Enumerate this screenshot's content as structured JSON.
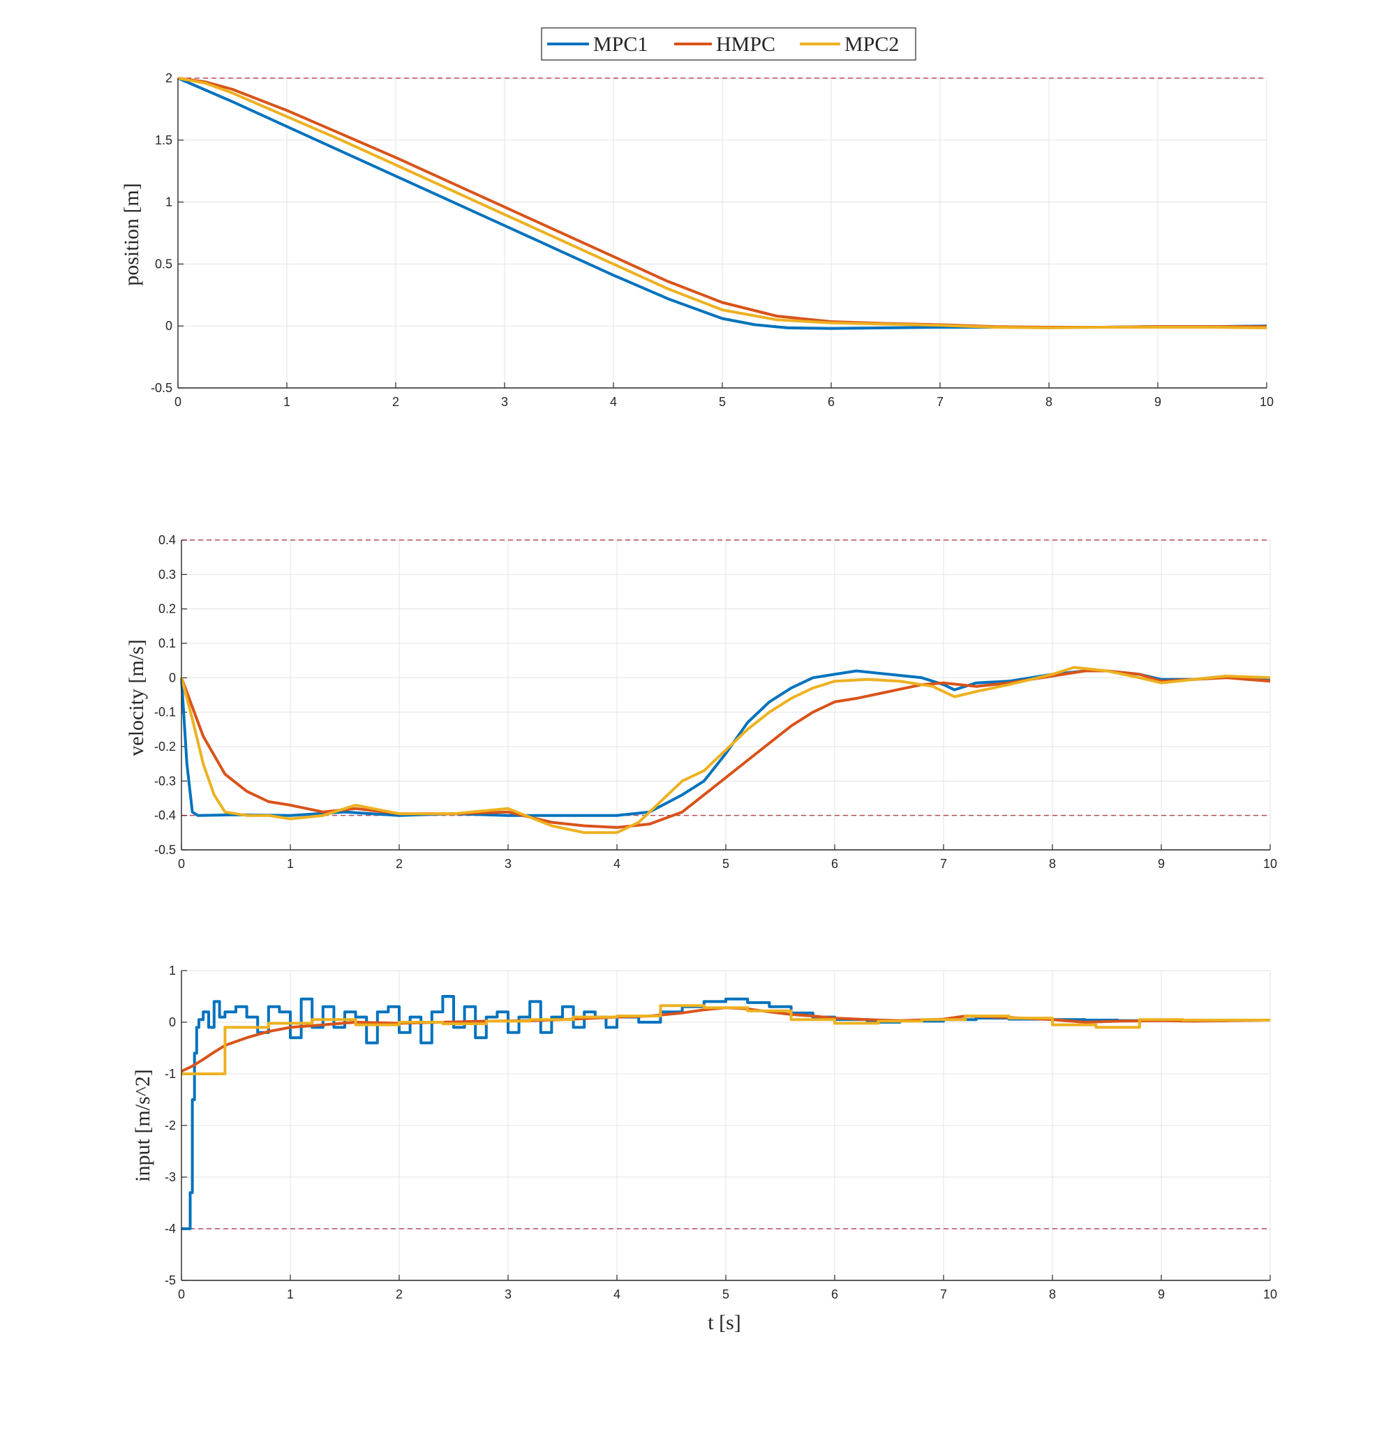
{
  "colors": {
    "MPC1": "#0072BD",
    "HMPC": "#D95319",
    "MPC2": "#EDB120",
    "limit": "#A2142F",
    "grid": "#e3e3e3",
    "axis": "#262626"
  },
  "legend": {
    "items": [
      "MPC1",
      "HMPC",
      "MPC2"
    ],
    "placement": "top-center"
  },
  "chart_data": [
    {
      "type": "line",
      "ylabel": "position [m]",
      "xlabel": "",
      "xlim": [
        0,
        10
      ],
      "ylim": [
        -0.5,
        2
      ],
      "xticks": [
        "0",
        "1",
        "2",
        "3",
        "4",
        "5",
        "6",
        "7",
        "8",
        "9",
        "10"
      ],
      "yticks": [
        "-0.5",
        "0",
        "0.5",
        "1",
        "1.5",
        "2"
      ],
      "grid": true,
      "limits": [
        2
      ],
      "series": [
        {
          "name": "MPC1",
          "x": [
            0,
            0.5,
            1,
            1.5,
            2,
            2.5,
            3,
            3.5,
            4,
            4.5,
            5,
            5.3,
            5.6,
            6,
            6.5,
            7,
            7.5,
            8,
            8.5,
            9,
            9.5,
            10
          ],
          "y": [
            2,
            1.81,
            1.61,
            1.41,
            1.21,
            1.01,
            0.81,
            0.61,
            0.41,
            0.22,
            0.06,
            0.01,
            -0.015,
            -0.02,
            -0.015,
            -0.01,
            -0.01,
            -0.01,
            -0.01,
            -0.005,
            -0.005,
            0
          ]
        },
        {
          "name": "HMPC",
          "x": [
            0,
            0.25,
            0.5,
            1,
            1.5,
            2,
            2.5,
            3,
            3.5,
            4,
            4.5,
            5,
            5.5,
            6,
            6.5,
            7,
            7.5,
            8,
            8.5,
            9,
            9.5,
            10
          ],
          "y": [
            2,
            1.97,
            1.91,
            1.74,
            1.55,
            1.36,
            1.16,
            0.96,
            0.76,
            0.56,
            0.36,
            0.19,
            0.08,
            0.035,
            0.02,
            0.01,
            -0.005,
            -0.01,
            -0.01,
            -0.005,
            -0.005,
            -0.005
          ]
        },
        {
          "name": "MPC2",
          "x": [
            0,
            0.25,
            0.5,
            1,
            1.5,
            2,
            2.5,
            3,
            3.5,
            4,
            4.5,
            5,
            5.5,
            6,
            6.5,
            7,
            7.5,
            8,
            8.5,
            9,
            9.5,
            10
          ],
          "y": [
            2,
            1.96,
            1.88,
            1.69,
            1.5,
            1.3,
            1.1,
            0.9,
            0.7,
            0.5,
            0.3,
            0.13,
            0.05,
            0.025,
            0.015,
            0.005,
            -0.01,
            -0.015,
            -0.01,
            -0.01,
            -0.01,
            -0.015
          ]
        }
      ]
    },
    {
      "type": "line",
      "ylabel": "velocity [m/s]",
      "xlabel": "",
      "xlim": [
        0,
        10
      ],
      "ylim": [
        -0.5,
        0.4
      ],
      "xticks": [
        "0",
        "1",
        "2",
        "3",
        "4",
        "5",
        "6",
        "7",
        "8",
        "9",
        "10"
      ],
      "yticks": [
        "-0.5",
        "-0.4",
        "-0.3",
        "-0.2",
        "-0.1",
        "0",
        "0.1",
        "0.2",
        "0.3",
        "0.4"
      ],
      "grid": true,
      "limits": [
        0.4,
        -0.4
      ],
      "series": [
        {
          "name": "MPC1",
          "x": [
            0,
            0.05,
            0.1,
            0.15,
            0.5,
            1,
            1.5,
            2,
            2.5,
            3,
            3.5,
            4,
            4.3,
            4.6,
            4.8,
            5,
            5.2,
            5.4,
            5.6,
            5.8,
            6,
            6.2,
            6.5,
            6.8,
            7,
            7.1,
            7.3,
            7.6,
            8,
            8.3,
            8.5,
            8.8,
            9,
            9.3,
            9.6,
            10
          ],
          "y": [
            0,
            -0.25,
            -0.39,
            -0.4,
            -0.398,
            -0.4,
            -0.39,
            -0.4,
            -0.395,
            -0.4,
            -0.4,
            -0.4,
            -0.39,
            -0.34,
            -0.3,
            -0.22,
            -0.13,
            -0.07,
            -0.03,
            0,
            0.01,
            0.02,
            0.01,
            0,
            -0.02,
            -0.035,
            -0.015,
            -0.01,
            0.01,
            0.02,
            0.02,
            0.01,
            -0.005,
            -0.005,
            0.005,
            -0.005
          ]
        },
        {
          "name": "HMPC",
          "x": [
            0,
            0.2,
            0.4,
            0.6,
            0.8,
            1,
            1.3,
            1.6,
            2,
            2.5,
            3,
            3.4,
            3.7,
            4,
            4.3,
            4.6,
            4.8,
            5,
            5.2,
            5.4,
            5.6,
            5.8,
            6,
            6.2,
            6.5,
            6.8,
            7,
            7.3,
            7.6,
            8,
            8.3,
            8.5,
            8.8,
            9,
            9.3,
            9.6,
            10
          ],
          "y": [
            0,
            -0.17,
            -0.28,
            -0.33,
            -0.36,
            -0.37,
            -0.39,
            -0.38,
            -0.395,
            -0.395,
            -0.39,
            -0.42,
            -0.43,
            -0.435,
            -0.425,
            -0.39,
            -0.34,
            -0.29,
            -0.24,
            -0.19,
            -0.14,
            -0.1,
            -0.07,
            -0.06,
            -0.04,
            -0.02,
            -0.015,
            -0.025,
            -0.015,
            0.005,
            0.02,
            0.02,
            0.01,
            -0.01,
            -0.005,
            0,
            -0.01
          ]
        },
        {
          "name": "MPC2",
          "x": [
            0,
            0.1,
            0.2,
            0.3,
            0.4,
            0.6,
            0.8,
            1,
            1.3,
            1.6,
            2,
            2.5,
            3,
            3.4,
            3.7,
            4,
            4.2,
            4.4,
            4.6,
            4.8,
            5,
            5.2,
            5.4,
            5.6,
            5.8,
            6,
            6.3,
            6.6,
            6.9,
            7.1,
            7.3,
            7.6,
            8,
            8.2,
            8.5,
            8.8,
            9,
            9.3,
            9.6,
            10
          ],
          "y": [
            0,
            -0.12,
            -0.25,
            -0.34,
            -0.39,
            -0.4,
            -0.4,
            -0.41,
            -0.4,
            -0.37,
            -0.395,
            -0.395,
            -0.38,
            -0.43,
            -0.45,
            -0.45,
            -0.42,
            -0.36,
            -0.3,
            -0.27,
            -0.21,
            -0.15,
            -0.1,
            -0.06,
            -0.03,
            -0.01,
            -0.005,
            -0.01,
            -0.025,
            -0.055,
            -0.04,
            -0.02,
            0.01,
            0.03,
            0.02,
            0,
            -0.015,
            -0.005,
            0.005,
            0
          ]
        }
      ]
    },
    {
      "type": "line",
      "ylabel": "input [m/s^2]",
      "xlabel": "t [s]",
      "xlim": [
        0,
        10
      ],
      "ylim": [
        -5,
        1
      ],
      "xticks": [
        "0",
        "1",
        "2",
        "3",
        "4",
        "5",
        "6",
        "7",
        "8",
        "9",
        "10"
      ],
      "yticks": [
        "-5",
        "-4",
        "-3",
        "-2",
        "-1",
        "0",
        "1"
      ],
      "grid": true,
      "limits": [
        -4
      ],
      "series": [
        {
          "name": "MPC1",
          "x": [
            0,
            0.05,
            0.08,
            0.1,
            0.12,
            0.14,
            0.16,
            0.2,
            0.25,
            0.3,
            0.35,
            0.4,
            0.5,
            0.6,
            0.7,
            0.8,
            0.9,
            1,
            1.1,
            1.2,
            1.3,
            1.4,
            1.5,
            1.6,
            1.7,
            1.8,
            1.9,
            2,
            2.1,
            2.2,
            2.3,
            2.4,
            2.5,
            2.6,
            2.7,
            2.8,
            2.9,
            3,
            3.1,
            3.2,
            3.3,
            3.4,
            3.5,
            3.6,
            3.7,
            3.8,
            3.9,
            4,
            4.2,
            4.4,
            4.6,
            4.8,
            5,
            5.2,
            5.4,
            5.6,
            5.8,
            6,
            6.3,
            6.6,
            7,
            7.3,
            7.6,
            8,
            8.3,
            8.6,
            9,
            9.3,
            9.6,
            10
          ],
          "y": [
            -4,
            -4,
            -3.3,
            -1.5,
            -0.6,
            -0.1,
            0.05,
            0.2,
            -0.1,
            0.4,
            0.1,
            0.2,
            0.3,
            0.1,
            -0.2,
            0.3,
            0.2,
            -0.3,
            0.45,
            -0.1,
            0.3,
            -0.1,
            0.2,
            0.1,
            -0.4,
            0.2,
            0.3,
            -0.2,
            0.1,
            -0.4,
            0.2,
            0.5,
            -0.1,
            0.3,
            -0.3,
            0.1,
            0.2,
            -0.2,
            0.1,
            0.4,
            -0.2,
            0.1,
            0.3,
            -0.1,
            0.2,
            0.1,
            -0.1,
            0.1,
            0,
            0.2,
            0.3,
            0.4,
            0.45,
            0.38,
            0.3,
            0.18,
            0.1,
            0.05,
            0,
            0.02,
            0.05,
            0.08,
            0.06,
            0.05,
            0.04,
            0.03,
            0.04,
            0.03,
            0.04,
            0.04
          ]
        },
        {
          "name": "HMPC",
          "x": [
            0,
            0.1,
            0.2,
            0.3,
            0.4,
            0.6,
            0.8,
            1,
            1.3,
            1.6,
            2,
            2.4,
            2.8,
            3.2,
            3.6,
            4,
            4.3,
            4.6,
            4.8,
            5,
            5.2,
            5.4,
            5.6,
            5.8,
            6,
            6.3,
            6.6,
            7,
            7.2,
            7.6,
            8,
            8.3,
            8.6,
            9,
            9.3,
            9.6,
            10
          ],
          "y": [
            -0.95,
            -0.85,
            -0.72,
            -0.58,
            -0.45,
            -0.3,
            -0.18,
            -0.1,
            -0.05,
            0.0,
            -0.02,
            0.0,
            0.02,
            0.03,
            0.06,
            0.1,
            0.12,
            0.18,
            0.24,
            0.28,
            0.26,
            0.2,
            0.15,
            0.12,
            0.08,
            0.05,
            0.03,
            0.06,
            0.12,
            0.09,
            0.05,
            0,
            0.02,
            0.03,
            0.02,
            0.03,
            0.04
          ]
        },
        {
          "name": "MPC2",
          "x": [
            0,
            0.4,
            0.4,
            0.8,
            0.8,
            1.2,
            1.2,
            1.6,
            1.6,
            2,
            2,
            2.4,
            2.4,
            2.8,
            2.8,
            3.2,
            3.2,
            3.6,
            3.6,
            4,
            4,
            4.4,
            4.4,
            4.8,
            4.8,
            5.2,
            5.2,
            5.6,
            5.6,
            6,
            6,
            6.4,
            6.4,
            6.8,
            6.8,
            7.2,
            7.2,
            7.6,
            7.6,
            8,
            8,
            8.4,
            8.4,
            8.8,
            8.8,
            9.2,
            9.2,
            9.6,
            9.6,
            10
          ],
          "y": [
            -1,
            -1,
            -0.1,
            -0.1,
            -0.02,
            -0.02,
            0.05,
            0.05,
            -0.05,
            -0.05,
            0,
            0,
            -0.03,
            -0.03,
            0.02,
            0.02,
            0.05,
            0.05,
            0.1,
            0.1,
            0.12,
            0.12,
            0.32,
            0.32,
            0.28,
            0.28,
            0.22,
            0.22,
            0.05,
            0.05,
            -0.02,
            -0.02,
            0.02,
            0.02,
            0.05,
            0.05,
            0.12,
            0.12,
            0.08,
            0.08,
            -0.05,
            -0.05,
            -0.1,
            -0.1,
            0.05,
            0.05,
            0.04,
            0.04,
            0.04,
            0.04
          ]
        }
      ]
    }
  ]
}
